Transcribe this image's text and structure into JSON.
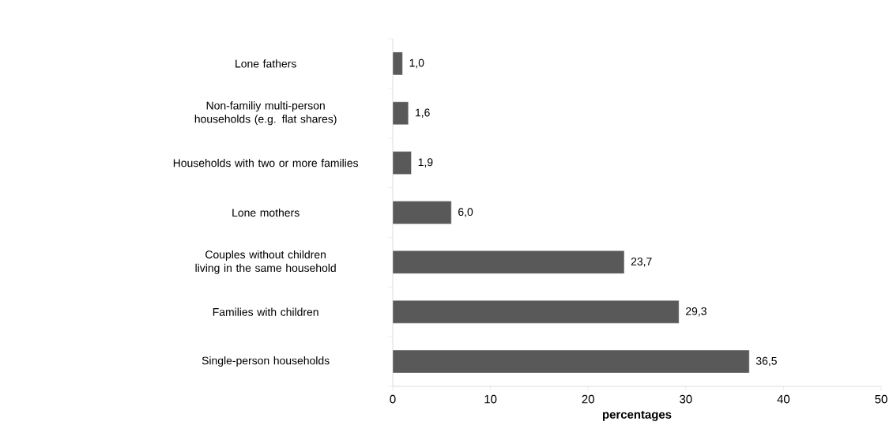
{
  "chart_data": {
    "type": "bar",
    "orientation": "horizontal",
    "xlabel": "percentages",
    "categories": [
      "Lone fathers",
      "Non-familiy multi-person households (e.g. flat shares)",
      "Households with two or more families",
      "Lone mothers",
      "Couples without children living in the same household",
      "Families with children",
      "Single-person households"
    ],
    "values": [
      1.0,
      1.6,
      1.9,
      6.0,
      23.7,
      29.3,
      36.5
    ],
    "value_labels": [
      "1,0",
      "1,6",
      "1,9",
      "6,0",
      "23,7",
      "29,3",
      "36,5"
    ],
    "color": "#595959",
    "xlim": [
      0,
      50
    ],
    "xticks": [
      0,
      10,
      20,
      30,
      40,
      50
    ]
  }
}
